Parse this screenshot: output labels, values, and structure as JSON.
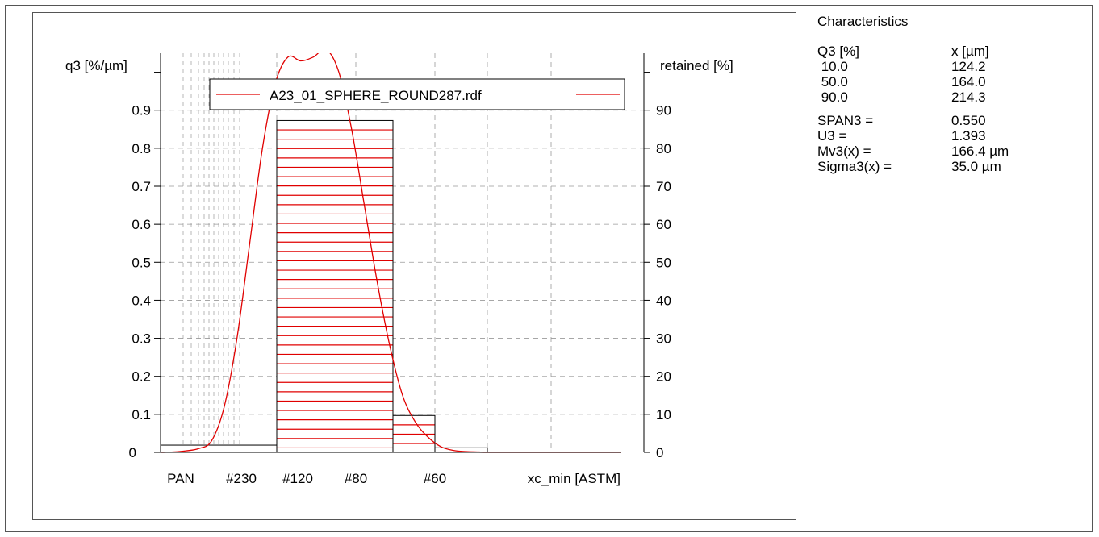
{
  "characteristics": {
    "title": "Characteristics",
    "header": {
      "col1": "Q3 [%]",
      "col2": "x [µm]"
    },
    "quantiles": [
      {
        "q": " 10.0",
        "x": "124.2"
      },
      {
        "q": " 50.0",
        "x": "164.0"
      },
      {
        "q": " 90.0",
        "x": "214.3"
      }
    ],
    "stats": [
      {
        "label": "SPAN3 =",
        "value": "0.550"
      },
      {
        "label": "U3 =",
        "value": "1.393"
      },
      {
        "label": "Mv3(x) =",
        "value": "166.4 µm"
      },
      {
        "label": "Sigma3(x) =",
        "value": "35.0 µm"
      }
    ]
  },
  "chart_data": {
    "type": "bar",
    "ylabel_left": "q3 [%/µm]",
    "ylabel_right": "retained [%]",
    "xlabel": "xc_min [ASTM]",
    "left_ticks": [
      "0",
      "0.1",
      "0.2",
      "0.3",
      "0.4",
      "0.5",
      "0.6",
      "0.7",
      "0.8",
      "0.9"
    ],
    "left_tick_values": [
      0,
      0.1,
      0.2,
      0.3,
      0.4,
      0.5,
      0.6,
      0.7,
      0.8,
      0.9
    ],
    "right_ticks": [
      "0",
      "10",
      "20",
      "30",
      "40",
      "50",
      "60",
      "70",
      "80",
      "90"
    ],
    "right_tick_values": [
      0,
      10,
      20,
      30,
      40,
      50,
      60,
      70,
      80,
      90
    ],
    "ylim_left": [
      0,
      1.05
    ],
    "ylim_right": [
      0,
      105
    ],
    "x_tick_labels": [
      "PAN",
      "#230",
      "#120",
      "#80",
      "#60"
    ],
    "legend": {
      "label": "A23_01_SPHERE_ROUND287.rdf",
      "color": "#e00000"
    },
    "retained_bars": [
      {
        "from": "PAN",
        "to": "#120",
        "value": 1.9
      },
      {
        "from": "#120",
        "to": "#60 (left)",
        "value": 87.3
      },
      {
        "from": "#60 (left)",
        "to": "#60",
        "value": 9.7
      },
      {
        "from": "#60",
        "to": "",
        "value": 1.2
      }
    ],
    "density_curve_q3": [
      0,
      0.001,
      0.004,
      0.01,
      0.03,
      0.12,
      0.3,
      0.55,
      0.8,
      0.97,
      1.04,
      1.03,
      1.04,
      1.06,
      1.0,
      0.85,
      0.65,
      0.45,
      0.28,
      0.15,
      0.08,
      0.04,
      0.015,
      0.005,
      0.002,
      0.001,
      0
    ],
    "colors": {
      "curve": "#e00000",
      "bars_hatch": "#e00000",
      "bar_edge": "#000000",
      "grid": "#999999"
    },
    "grid": true
  }
}
